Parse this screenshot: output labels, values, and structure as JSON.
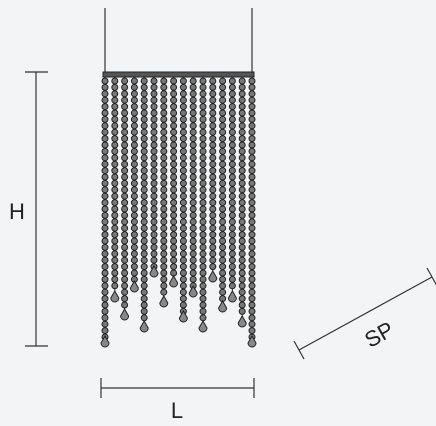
{
  "labels": {
    "height": "H",
    "length": "L",
    "depth": "SP"
  }
}
